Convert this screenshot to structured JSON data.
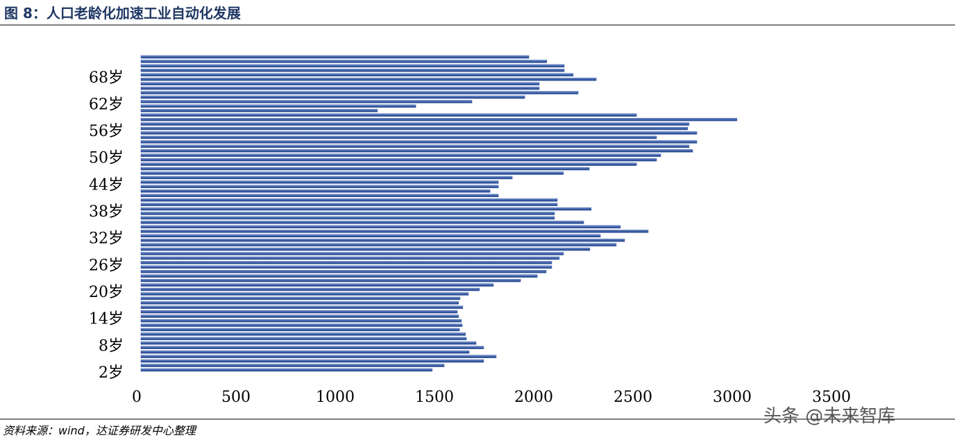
{
  "chart_data": {
    "type": "bar",
    "orientation": "horizontal",
    "title": "图 8：人口老龄化加速工业自动化发展",
    "source": "资料来源：wind，达证券研发中心整理",
    "watermark": "头条 @未来智库",
    "categories": [
      "2岁",
      null,
      null,
      null,
      null,
      null,
      "8岁",
      null,
      null,
      null,
      null,
      null,
      "14岁",
      null,
      null,
      null,
      null,
      null,
      "20岁",
      null,
      null,
      null,
      null,
      null,
      "26岁",
      null,
      null,
      null,
      null,
      null,
      "32岁",
      null,
      null,
      null,
      null,
      null,
      "38岁",
      null,
      null,
      null,
      null,
      null,
      "44岁",
      null,
      null,
      null,
      null,
      null,
      "50岁",
      null,
      null,
      null,
      null,
      null,
      "56岁",
      null,
      null,
      null,
      null,
      null,
      "62岁",
      null,
      null,
      null,
      null,
      null,
      "68岁",
      null,
      null,
      null,
      null
    ],
    "values": [
      1468,
      1528,
      1727,
      1790,
      1654,
      1727,
      1689,
      1640,
      1636,
      1605,
      1619,
      1615,
      1601,
      1594,
      1622,
      1601,
      1608,
      1650,
      1706,
      1776,
      1913,
      1997,
      2042,
      2070,
      2070,
      2108,
      2129,
      2262,
      2395,
      2437,
      2315,
      2556,
      2416,
      2231,
      2084,
      2084,
      2269,
      2098,
      2098,
      1801,
      1759,
      1801,
      1801,
      1871,
      2129,
      2259,
      2497,
      2598,
      2619,
      2780,
      2762,
      2801,
      2598,
      2801,
      2755,
      2762,
      3003,
      2497,
      1192,
      1385,
      1668,
      1934,
      2203,
      2007,
      2007,
      2294,
      2178,
      2133,
      2133,
      2045,
      1955
    ],
    "color": "#3b5ea8",
    "xlim": [
      0,
      3500
    ],
    "xticks": [
      0,
      500,
      1000,
      1500,
      2000,
      2500,
      3000,
      3500
    ],
    "grid": false
  }
}
